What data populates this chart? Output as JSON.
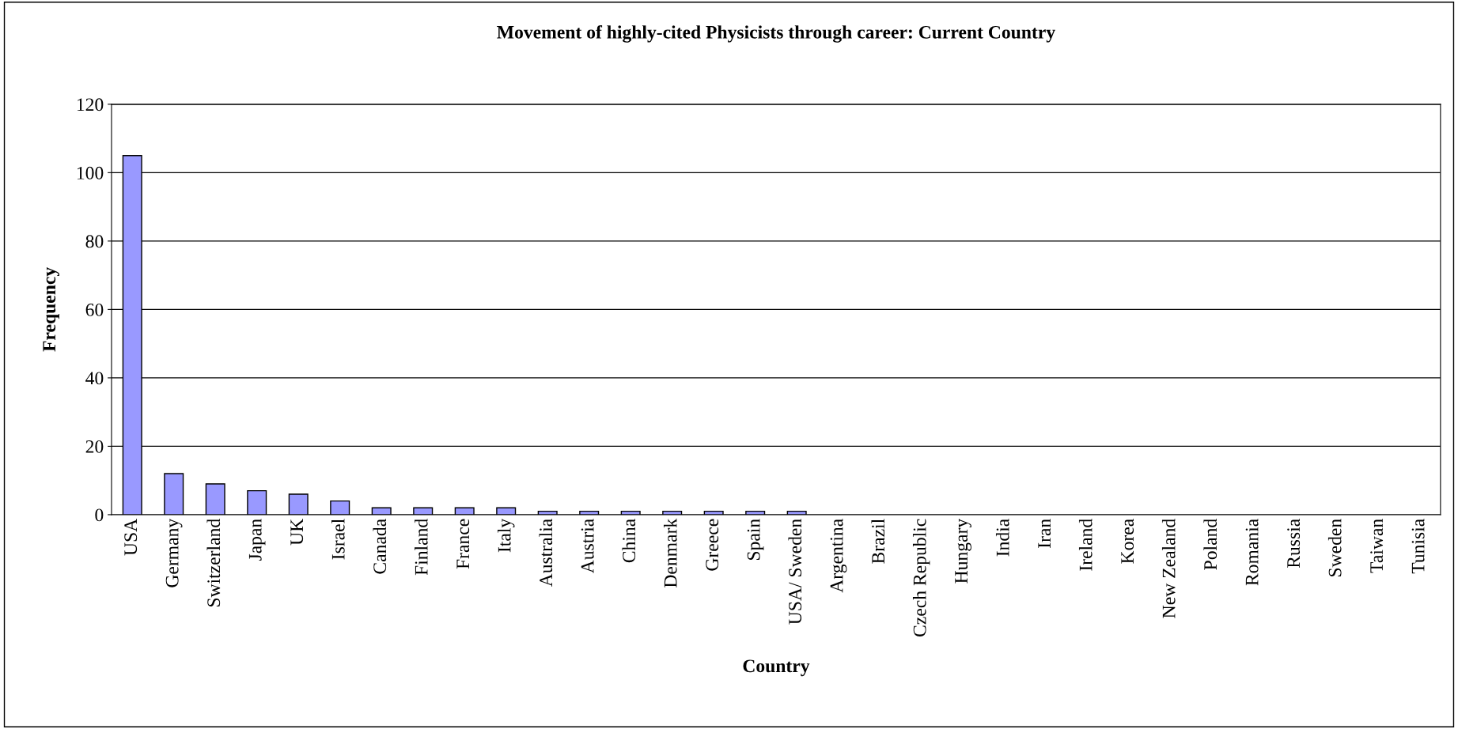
{
  "chart_data": {
    "type": "bar",
    "title": "Movement of highly-cited Physicists through career: Current Country",
    "xlabel": "Country",
    "ylabel": "Frequency",
    "categories": [
      "USA",
      "Germany",
      "Switzerland",
      "Japan",
      "UK",
      "Israel",
      "Canada",
      "Finland",
      "France",
      "Italy",
      "Australia",
      "Austria",
      "China",
      "Denmark",
      "Greece",
      "Spain",
      "USA/ Sweden",
      "Argentina",
      "Brazil",
      "Czech Republic",
      "Hungary",
      "India",
      "Iran",
      "Ireland",
      "Korea",
      "New Zealand",
      "Poland",
      "Romania",
      "Russia",
      "Sweden",
      "Taiwan",
      "Tunisia"
    ],
    "values": [
      105,
      12,
      9,
      7,
      6,
      4,
      2,
      2,
      2,
      2,
      1,
      1,
      1,
      1,
      1,
      1,
      1,
      0,
      0,
      0,
      0,
      0,
      0,
      0,
      0,
      0,
      0,
      0,
      0,
      0,
      0,
      0
    ],
    "color": "#9999ff",
    "ylim": [
      0,
      120
    ],
    "yticks": [
      0,
      20,
      40,
      60,
      80,
      100,
      120
    ],
    "grid": "y",
    "legend": false
  }
}
